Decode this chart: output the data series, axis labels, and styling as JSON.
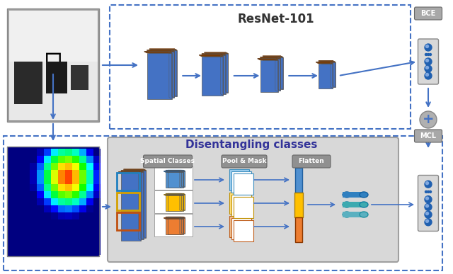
{
  "bg_color": "#ffffff",
  "blue_dark": "#1a5fa8",
  "blue_mid": "#4472c4",
  "blue_light": "#5b9bd5",
  "blue_face": "#4472c4",
  "orange_dark": "#7b3900",
  "orange_mid": "#c55a11",
  "orange_face": "#ed7d31",
  "yellow_face": "#ffc000",
  "gray_box": "#c0c0c0",
  "gray_light": "#d9d9d9",
  "dashed_color": "#4472c4",
  "resnet_label": "ResNet-101",
  "bce_label": "BCE",
  "mcl_label": "MCL",
  "disentangle_label": "Disentangling classes",
  "spatial_label": "Spatial Classes",
  "pool_label": "Pool & Mask",
  "flatten_label": "Flatten"
}
